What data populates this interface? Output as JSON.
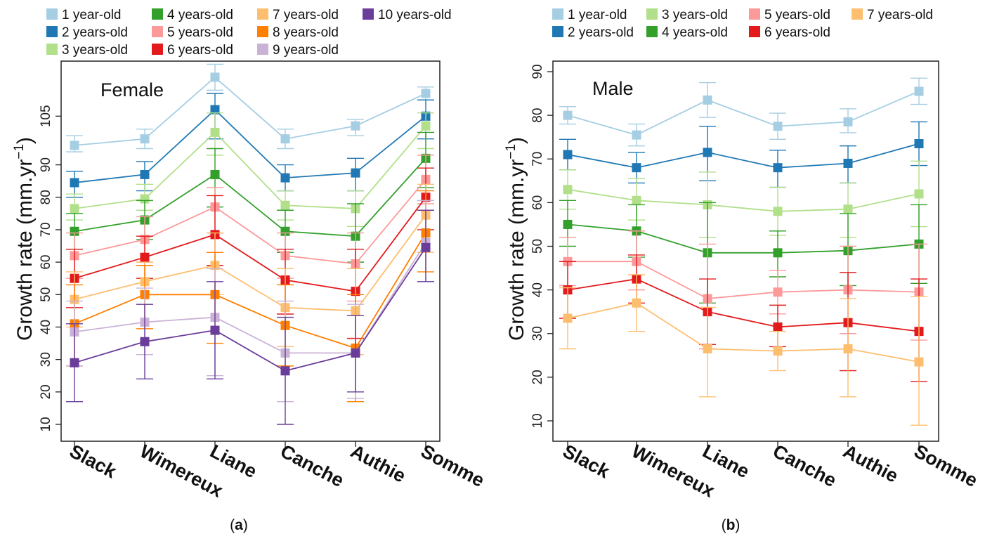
{
  "caption_a": "a",
  "caption_b": "b",
  "ylabel_main": "Growth rate (mm.yr",
  "ylabel_sup": "−1",
  "ylabel_close": ")",
  "chart_data": [
    {
      "type": "line",
      "title": "Female",
      "ylabel": "Growth rate (mm.yr−1)",
      "categories": [
        "Slack",
        "Wimereux",
        "Liane",
        "Canche",
        "Authie",
        "Somme"
      ],
      "y_ticks": [
        10,
        20,
        30,
        40,
        50,
        60,
        70,
        80,
        90,
        105
      ],
      "error_bars": true,
      "legend_position": "top",
      "series": [
        {
          "name": "1 year-old",
          "color": "#a6cee3",
          "values": [
            96,
            98,
            117,
            98,
            102,
            112
          ],
          "lower": [
            94,
            95,
            113,
            95,
            99,
            110
          ],
          "upper": [
            99,
            101,
            121,
            101,
            104,
            114
          ]
        },
        {
          "name": "2 years-old",
          "color": "#1f78b4",
          "values": [
            84.5,
            87,
            107,
            86,
            87.5,
            105
          ],
          "lower": [
            80,
            82,
            98,
            82,
            82,
            98
          ],
          "upper": [
            88,
            91,
            112,
            90,
            92,
            110
          ]
        },
        {
          "name": "3 years-old",
          "color": "#b2df8a",
          "values": [
            76.5,
            79.5,
            100,
            77.5,
            76.5,
            102
          ],
          "lower": [
            73,
            76,
            93,
            73,
            71,
            95
          ],
          "upper": [
            81,
            84,
            106,
            82,
            82,
            106
          ]
        },
        {
          "name": "4 years-old",
          "color": "#33a02c",
          "values": [
            69.5,
            73,
            87,
            69.5,
            68,
            92
          ],
          "lower": [
            64,
            67,
            77,
            63,
            60,
            83
          ],
          "upper": [
            75,
            79,
            95,
            76,
            78,
            100
          ]
        },
        {
          "name": "5 years-old",
          "color": "#fb9a99",
          "values": [
            62,
            67,
            77,
            62,
            59.5,
            85.5
          ],
          "lower": [
            55,
            60,
            69,
            55,
            48,
            78
          ],
          "upper": [
            69,
            74,
            83,
            69,
            69,
            93
          ]
        },
        {
          "name": "6 years-old",
          "color": "#e31a1c",
          "values": [
            55,
            61.5,
            68.5,
            54.5,
            51,
            80
          ],
          "lower": [
            46,
            55,
            59,
            44,
            36.5,
            70
          ],
          "upper": [
            64,
            68,
            80.5,
            64,
            64,
            89
          ]
        },
        {
          "name": "7 years-old",
          "color": "#fdbf6f",
          "values": [
            48.5,
            54,
            59,
            46,
            45,
            74.5
          ],
          "lower": [
            40,
            47,
            50,
            34,
            31.5,
            63
          ],
          "upper": [
            57,
            60,
            69,
            58,
            58,
            84
          ]
        },
        {
          "name": "8 years-old",
          "color": "#ff7f00",
          "values": [
            41,
            50,
            50,
            40.5,
            33.5,
            69
          ],
          "lower": [
            28,
            39.5,
            35,
            28,
            17,
            57
          ],
          "upper": [
            53,
            59,
            63,
            53,
            50,
            82
          ]
        },
        {
          "name": "9 years-old",
          "color": "#cab2d6",
          "values": [
            38.5,
            41.5,
            43,
            32,
            32,
            66
          ],
          "lower": [
            28,
            31.5,
            25,
            17,
            18,
            54
          ],
          "upper": [
            48,
            52,
            58,
            48,
            47,
            79
          ]
        },
        {
          "name": "10 years-old",
          "color": "#6a3d9a",
          "values": [
            29,
            35.5,
            39,
            26.5,
            32,
            64.5
          ],
          "lower": [
            17,
            24,
            24,
            10,
            20,
            54
          ],
          "upper": [
            41,
            47,
            54,
            43,
            43.5,
            76
          ]
        }
      ]
    },
    {
      "type": "line",
      "title": "Male",
      "ylabel": "Growth rate (mm.yr−1)",
      "categories": [
        "Slack",
        "Wimereux",
        "Liane",
        "Canche",
        "Authie",
        "Somme"
      ],
      "ylim": [
        5,
        90
      ],
      "y_ticks": [
        10,
        20,
        30,
        40,
        50,
        60,
        70,
        80,
        90
      ],
      "error_bars": true,
      "legend_position": "top",
      "series": [
        {
          "name": "1 year-old",
          "color": "#a6cee3",
          "values": [
            80,
            75.5,
            83.5,
            77.5,
            78.5,
            85.5
          ],
          "lower": [
            78,
            73,
            79.5,
            74.5,
            76,
            82.5
          ],
          "upper": [
            82,
            78,
            87.5,
            80.5,
            81.5,
            88.5
          ]
        },
        {
          "name": "2 years-old",
          "color": "#1f78b4",
          "values": [
            71,
            68,
            71.5,
            68,
            69,
            73.5
          ],
          "lower": [
            67.5,
            64.5,
            65,
            63.5,
            64.5,
            68.5
          ],
          "upper": [
            74.5,
            71.5,
            77.5,
            72,
            73,
            78.5
          ]
        },
        {
          "name": "3 years-old",
          "color": "#b2df8a",
          "values": [
            63,
            60.5,
            59.5,
            58,
            58.5,
            62
          ],
          "lower": [
            58.5,
            56,
            52,
            52.5,
            52,
            54.5
          ],
          "upper": [
            67.5,
            65.5,
            67,
            63.5,
            64.5,
            69.5
          ]
        },
        {
          "name": "4 years-old",
          "color": "#33a02c",
          "values": [
            55,
            53.5,
            48.5,
            48.5,
            49,
            50.5
          ],
          "lower": [
            50,
            47.5,
            37,
            43,
            41,
            41.5
          ],
          "upper": [
            60.5,
            59.5,
            60,
            53.5,
            57.5,
            59.5
          ]
        },
        {
          "name": "5 years-old",
          "color": "#fb9a99",
          "values": [
            46.5,
            46.5,
            38,
            39.5,
            40,
            39.5
          ],
          "lower": [
            41,
            40,
            26.5,
            34.5,
            30,
            28.5
          ],
          "upper": [
            52,
            53.5,
            50.5,
            44.5,
            50,
            50.5
          ]
        },
        {
          "name": "6 years-old",
          "color": "#e31a1c",
          "values": [
            40,
            42.5,
            35,
            31.5,
            32.5,
            30.5
          ],
          "lower": [
            33.5,
            37,
            27.5,
            27,
            21.5,
            19
          ],
          "upper": [
            46.5,
            48,
            42.5,
            36.5,
            44,
            42.5
          ]
        },
        {
          "name": "7 years-old",
          "color": "#fdbf6f",
          "values": [
            33.5,
            37,
            26.5,
            26,
            26.5,
            23.5
          ],
          "lower": [
            26.5,
            30.5,
            15.5,
            21.5,
            15.5,
            9
          ],
          "upper": [
            40.5,
            43.5,
            36,
            30.5,
            38,
            38.5
          ]
        }
      ]
    }
  ]
}
